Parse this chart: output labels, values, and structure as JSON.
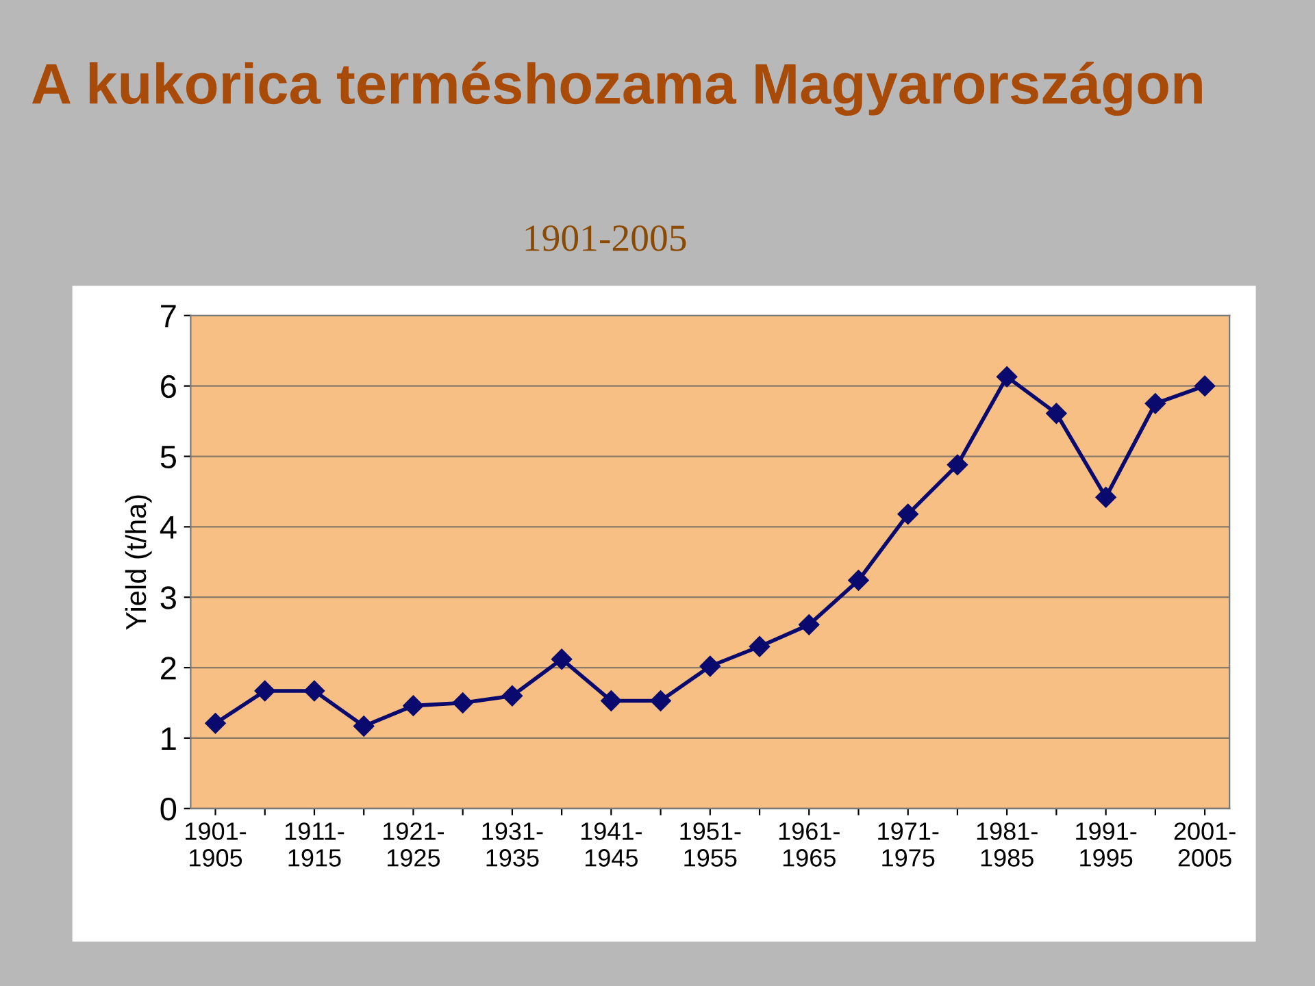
{
  "chart_data": {
    "type": "line",
    "title": "A kukorica terméshozama Magyarországon",
    "subtitle": "1901-2005",
    "ylabel": "Yield (t/ha)",
    "categories": [
      "1901-\n1905",
      null,
      "1911-\n1915",
      null,
      "1921-\n1925",
      null,
      "1931-\n1935",
      null,
      "1941-\n1945",
      null,
      "1951-\n1955",
      null,
      "1961-\n1965",
      null,
      "1971-\n1975",
      null,
      "1981-\n1985",
      null,
      "1991-\n1995",
      null,
      "2001-\n2005"
    ],
    "series": [
      {
        "color": "#0a0a6e",
        "values": [
          1.21,
          1.67,
          1.67,
          1.17,
          1.46,
          1.5,
          1.6,
          2.12,
          1.53,
          1.53,
          2.02,
          2.3,
          2.61,
          3.24,
          4.18,
          4.88,
          6.13,
          5.61,
          4.42,
          5.75,
          6.0
        ]
      }
    ],
    "ylim": [
      0,
      7
    ],
    "yticks": [
      0,
      1,
      2,
      3,
      4,
      5,
      6,
      7
    ],
    "grid": "y",
    "marker": "diamond",
    "line_style": "solid",
    "legend": false
  }
}
